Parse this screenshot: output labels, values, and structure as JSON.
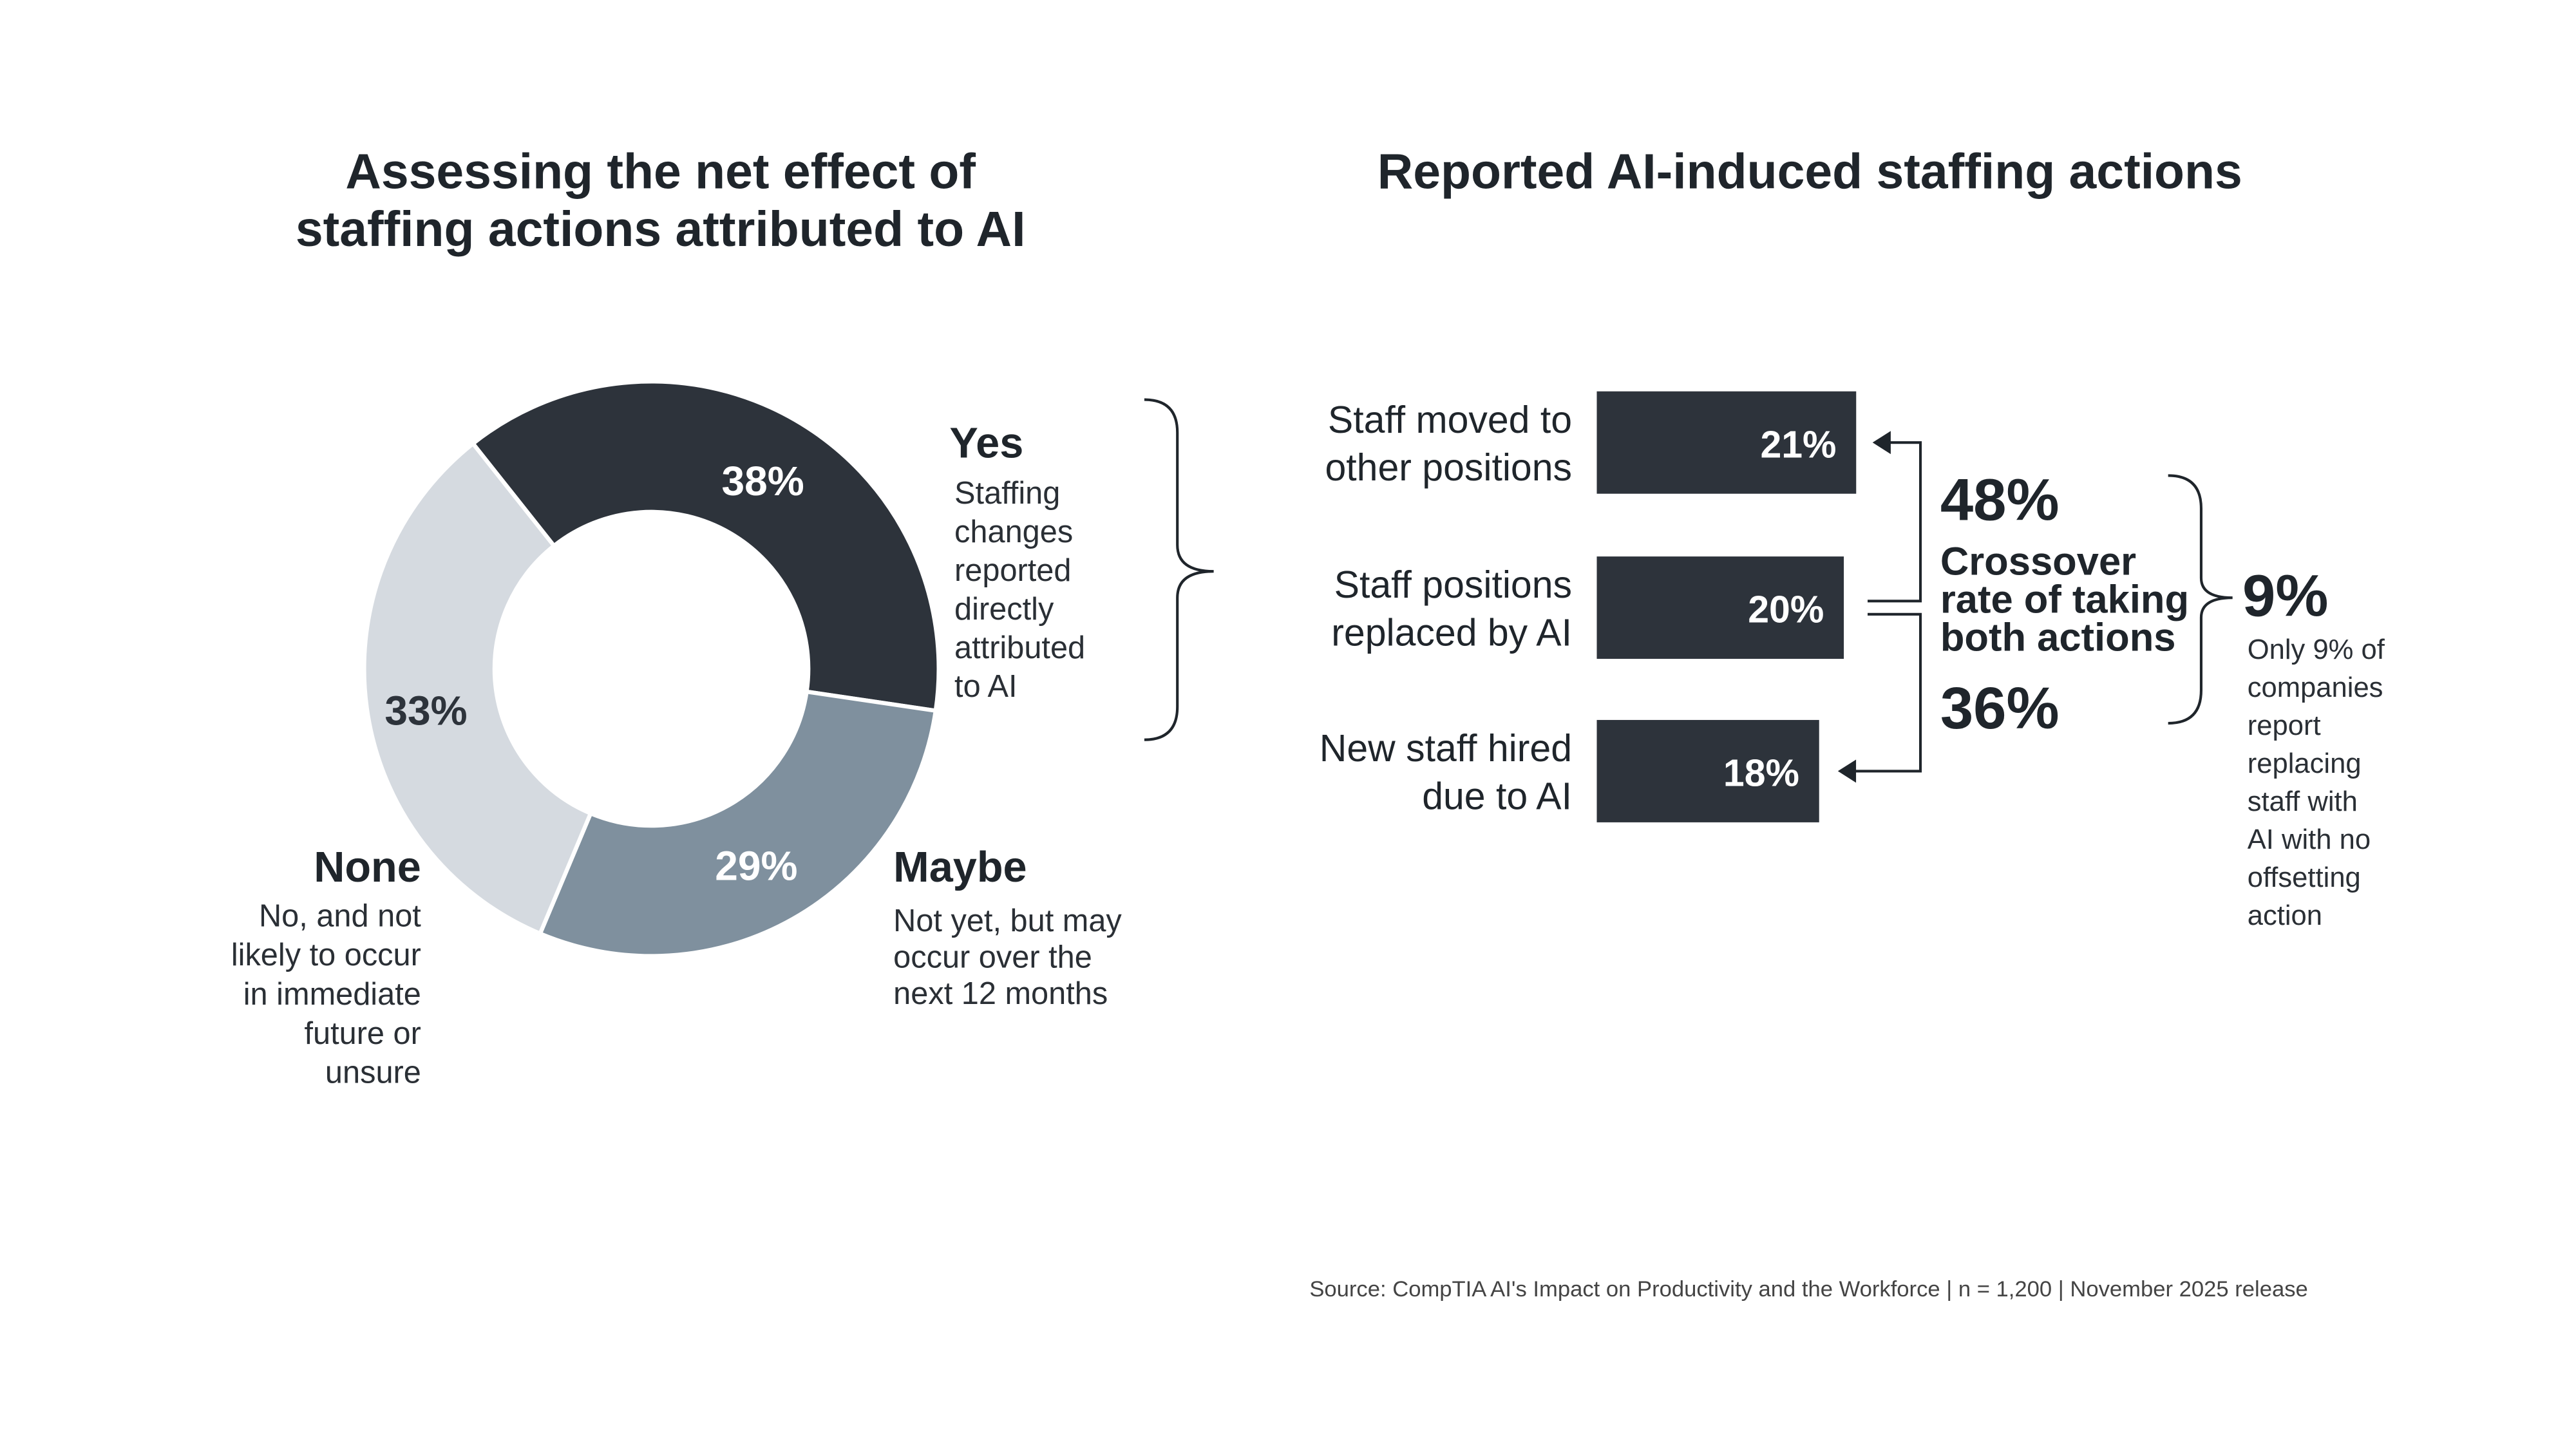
{
  "colors": {
    "yes": "#2d333b",
    "maybe": "#7f909e",
    "none": "#d5dae0",
    "bar": "#2d333b"
  },
  "chart_data": [
    {
      "type": "pie",
      "title": [
        "Assessing the net effect of",
        "staffing actions attributed to AI"
      ],
      "slices": [
        {
          "category": "Yes",
          "value": 38,
          "label": "38%",
          "description": [
            "Staffing",
            "changes",
            "reported",
            "directly",
            "attributed",
            "to AI"
          ]
        },
        {
          "category": "Maybe",
          "value": 29,
          "label": "29%",
          "description": [
            "Not yet, but may",
            "occur over the",
            "next 12 months"
          ]
        },
        {
          "category": "None",
          "value": 33,
          "label": "33%",
          "description": [
            "No, and not",
            "likely to occur",
            "in immediate",
            "future or",
            "unsure"
          ]
        }
      ]
    },
    {
      "type": "bar",
      "orientation": "horizontal",
      "title": "Reported AI-induced staffing actions",
      "categories": [
        [
          "Staff moved to",
          "other positions"
        ],
        [
          "Staff positions",
          "replaced by AI"
        ],
        [
          "New staff hired",
          "due to AI"
        ]
      ],
      "values": [
        21,
        20,
        18
      ],
      "labels": [
        "21%",
        "20%",
        "18%"
      ],
      "annotations": {
        "crossover_top": "48%",
        "crossover_text": [
          "Crossover",
          "rate of taking",
          "both actions"
        ],
        "crossover_bottom": "36%",
        "net_value": "9%",
        "net_text": [
          "Only 9% of",
          "companies",
          "report",
          "replacing",
          "staff with",
          "AI with no",
          "offsetting",
          "action"
        ]
      }
    }
  ],
  "source": "Source: CompTIA AI's Impact on Productivity and the Workforce | n = 1,200 | November 2025 release"
}
